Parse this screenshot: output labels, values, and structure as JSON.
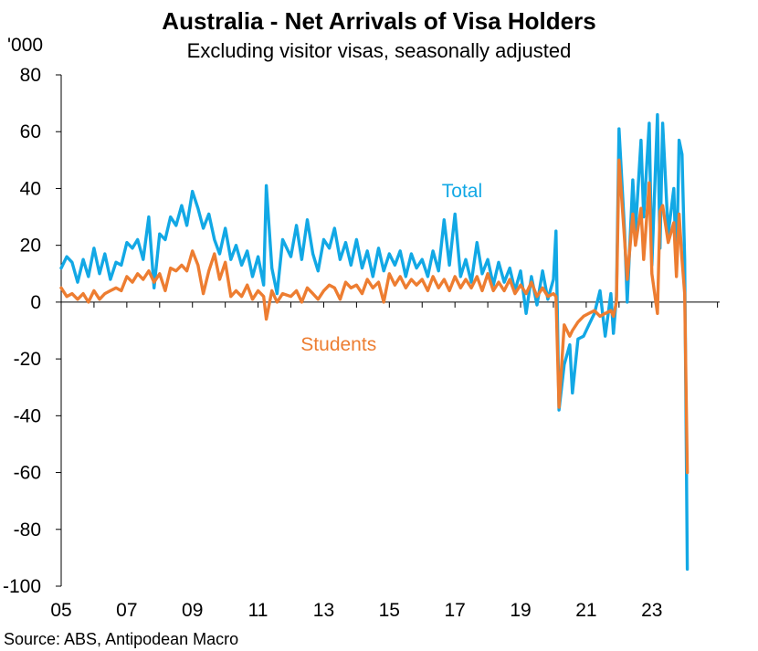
{
  "chart_data": {
    "type": "line",
    "title": "Australia - Net Arrivals of Visa Holders",
    "subtitle": "Excluding visitor visas, seasonally adjusted",
    "y_unit": "'000",
    "source": "Source: ABS, Antipodean Macro",
    "ylim": [
      -100,
      80
    ],
    "yticks": [
      80,
      60,
      40,
      20,
      0,
      -20,
      -40,
      -60,
      -80,
      -100
    ],
    "xlim": [
      2005,
      2025.4
    ],
    "xticks": [
      {
        "x": 2005,
        "label": "05"
      },
      {
        "x": 2007,
        "label": "07"
      },
      {
        "x": 2009,
        "label": "09"
      },
      {
        "x": 2011,
        "label": "11"
      },
      {
        "x": 2013,
        "label": "13"
      },
      {
        "x": 2015,
        "label": "15"
      },
      {
        "x": 2017,
        "label": "17"
      },
      {
        "x": 2019,
        "label": "19"
      },
      {
        "x": 2021,
        "label": "21"
      },
      {
        "x": 2023,
        "label": "23"
      }
    ],
    "grid": false,
    "legend": "inline labels",
    "series": [
      {
        "name": "Total",
        "color": "#12a8e5",
        "label_at": [
          2016.6,
          37
        ],
        "points": [
          [
            2005.0,
            12
          ],
          [
            2005.17,
            16
          ],
          [
            2005.33,
            14
          ],
          [
            2005.5,
            7
          ],
          [
            2005.67,
            15
          ],
          [
            2005.83,
            9
          ],
          [
            2006.0,
            19
          ],
          [
            2006.17,
            10
          ],
          [
            2006.33,
            17
          ],
          [
            2006.5,
            8
          ],
          [
            2006.67,
            14
          ],
          [
            2006.83,
            13
          ],
          [
            2007.0,
            21
          ],
          [
            2007.17,
            19
          ],
          [
            2007.33,
            22
          ],
          [
            2007.5,
            15
          ],
          [
            2007.67,
            30
          ],
          [
            2007.83,
            5
          ],
          [
            2008.0,
            24
          ],
          [
            2008.17,
            22
          ],
          [
            2008.33,
            30
          ],
          [
            2008.5,
            27
          ],
          [
            2008.67,
            34
          ],
          [
            2008.83,
            27
          ],
          [
            2009.0,
            39
          ],
          [
            2009.17,
            33
          ],
          [
            2009.33,
            26
          ],
          [
            2009.5,
            31
          ],
          [
            2009.67,
            22
          ],
          [
            2009.83,
            17
          ],
          [
            2010.0,
            26
          ],
          [
            2010.17,
            15
          ],
          [
            2010.33,
            20
          ],
          [
            2010.5,
            13
          ],
          [
            2010.67,
            18
          ],
          [
            2010.83,
            9
          ],
          [
            2011.0,
            16
          ],
          [
            2011.17,
            6
          ],
          [
            2011.25,
            41
          ],
          [
            2011.42,
            12
          ],
          [
            2011.58,
            3
          ],
          [
            2011.75,
            22
          ],
          [
            2012.0,
            16
          ],
          [
            2012.17,
            27
          ],
          [
            2012.33,
            15
          ],
          [
            2012.5,
            29
          ],
          [
            2012.67,
            17
          ],
          [
            2012.83,
            11
          ],
          [
            2013.0,
            22
          ],
          [
            2013.17,
            19
          ],
          [
            2013.33,
            26
          ],
          [
            2013.5,
            15
          ],
          [
            2013.67,
            21
          ],
          [
            2013.83,
            13
          ],
          [
            2014.0,
            22
          ],
          [
            2014.17,
            12
          ],
          [
            2014.33,
            18
          ],
          [
            2014.5,
            9
          ],
          [
            2014.67,
            19
          ],
          [
            2014.83,
            11
          ],
          [
            2015.0,
            17
          ],
          [
            2015.17,
            13
          ],
          [
            2015.33,
            18
          ],
          [
            2015.5,
            9
          ],
          [
            2015.67,
            17
          ],
          [
            2015.83,
            12
          ],
          [
            2016.0,
            15
          ],
          [
            2016.17,
            9
          ],
          [
            2016.33,
            18
          ],
          [
            2016.5,
            11
          ],
          [
            2016.67,
            29
          ],
          [
            2016.83,
            13
          ],
          [
            2017.0,
            31
          ],
          [
            2017.17,
            9
          ],
          [
            2017.33,
            15
          ],
          [
            2017.5,
            7
          ],
          [
            2017.67,
            21
          ],
          [
            2017.83,
            10
          ],
          [
            2018.0,
            15
          ],
          [
            2018.17,
            6
          ],
          [
            2018.33,
            14
          ],
          [
            2018.5,
            7
          ],
          [
            2018.67,
            12
          ],
          [
            2018.83,
            4
          ],
          [
            2019.0,
            11
          ],
          [
            2019.17,
            -4
          ],
          [
            2019.33,
            9
          ],
          [
            2019.5,
            -1
          ],
          [
            2019.67,
            11
          ],
          [
            2019.83,
            1
          ],
          [
            2020.0,
            8
          ],
          [
            2020.08,
            25
          ],
          [
            2020.17,
            -38
          ],
          [
            2020.33,
            -22
          ],
          [
            2020.5,
            -15
          ],
          [
            2020.58,
            -32
          ],
          [
            2020.75,
            -13
          ],
          [
            2020.92,
            -12
          ],
          [
            2021.08,
            -8
          ],
          [
            2021.25,
            -4
          ],
          [
            2021.42,
            4
          ],
          [
            2021.58,
            -12
          ],
          [
            2021.75,
            3
          ],
          [
            2021.83,
            -11
          ],
          [
            2021.92,
            2
          ],
          [
            2022.0,
            61
          ],
          [
            2022.17,
            25
          ],
          [
            2022.25,
            0
          ],
          [
            2022.42,
            43
          ],
          [
            2022.5,
            25
          ],
          [
            2022.67,
            57
          ],
          [
            2022.75,
            30
          ],
          [
            2022.92,
            63
          ],
          [
            2023.0,
            13
          ],
          [
            2023.17,
            66
          ],
          [
            2023.25,
            19
          ],
          [
            2023.33,
            63
          ],
          [
            2023.5,
            24
          ],
          [
            2023.67,
            40
          ],
          [
            2023.75,
            11
          ],
          [
            2023.83,
            57
          ],
          [
            2023.92,
            52
          ],
          [
            2024.0,
            15
          ],
          [
            2024.08,
            -94
          ]
        ]
      },
      {
        "name": "Students",
        "color": "#ed7d31",
        "label_at": [
          2012.3,
          -17
        ],
        "points": [
          [
            2005.0,
            5
          ],
          [
            2005.17,
            2
          ],
          [
            2005.33,
            3
          ],
          [
            2005.5,
            1
          ],
          [
            2005.67,
            3
          ],
          [
            2005.83,
            0
          ],
          [
            2006.0,
            4
          ],
          [
            2006.17,
            1
          ],
          [
            2006.33,
            3
          ],
          [
            2006.5,
            4
          ],
          [
            2006.67,
            5
          ],
          [
            2006.83,
            4
          ],
          [
            2007.0,
            9
          ],
          [
            2007.17,
            7
          ],
          [
            2007.33,
            10
          ],
          [
            2007.5,
            8
          ],
          [
            2007.67,
            11
          ],
          [
            2007.83,
            7
          ],
          [
            2008.0,
            10
          ],
          [
            2008.17,
            4
          ],
          [
            2008.33,
            12
          ],
          [
            2008.5,
            11
          ],
          [
            2008.67,
            13
          ],
          [
            2008.83,
            11
          ],
          [
            2009.0,
            18
          ],
          [
            2009.17,
            13
          ],
          [
            2009.33,
            3
          ],
          [
            2009.5,
            11
          ],
          [
            2009.67,
            17
          ],
          [
            2009.83,
            8
          ],
          [
            2010.0,
            14
          ],
          [
            2010.17,
            2
          ],
          [
            2010.33,
            4
          ],
          [
            2010.5,
            2
          ],
          [
            2010.67,
            6
          ],
          [
            2010.83,
            1
          ],
          [
            2011.0,
            4
          ],
          [
            2011.17,
            2
          ],
          [
            2011.25,
            -6
          ],
          [
            2011.42,
            4
          ],
          [
            2011.58,
            0
          ],
          [
            2011.75,
            3
          ],
          [
            2012.0,
            2
          ],
          [
            2012.17,
            4
          ],
          [
            2012.33,
            0
          ],
          [
            2012.5,
            5
          ],
          [
            2012.67,
            3
          ],
          [
            2012.83,
            1
          ],
          [
            2013.0,
            4
          ],
          [
            2013.17,
            6
          ],
          [
            2013.33,
            5
          ],
          [
            2013.5,
            1
          ],
          [
            2013.67,
            7
          ],
          [
            2013.83,
            5
          ],
          [
            2014.0,
            6
          ],
          [
            2014.17,
            3
          ],
          [
            2014.33,
            8
          ],
          [
            2014.5,
            5
          ],
          [
            2014.67,
            7
          ],
          [
            2014.83,
            0
          ],
          [
            2015.0,
            10
          ],
          [
            2015.17,
            6
          ],
          [
            2015.33,
            9
          ],
          [
            2015.5,
            5
          ],
          [
            2015.67,
            8
          ],
          [
            2015.83,
            6
          ],
          [
            2016.0,
            8
          ],
          [
            2016.17,
            4
          ],
          [
            2016.33,
            9
          ],
          [
            2016.5,
            5
          ],
          [
            2016.67,
            8
          ],
          [
            2016.83,
            4
          ],
          [
            2017.0,
            9
          ],
          [
            2017.17,
            5
          ],
          [
            2017.33,
            8
          ],
          [
            2017.5,
            5
          ],
          [
            2017.67,
            9
          ],
          [
            2017.83,
            4
          ],
          [
            2018.0,
            10
          ],
          [
            2018.17,
            4
          ],
          [
            2018.33,
            7
          ],
          [
            2018.5,
            4
          ],
          [
            2018.67,
            8
          ],
          [
            2018.83,
            3
          ],
          [
            2019.0,
            6
          ],
          [
            2019.17,
            3
          ],
          [
            2019.33,
            7
          ],
          [
            2019.5,
            2
          ],
          [
            2019.67,
            5
          ],
          [
            2019.83,
            2
          ],
          [
            2020.0,
            3
          ],
          [
            2020.08,
            2
          ],
          [
            2020.17,
            -37
          ],
          [
            2020.33,
            -8
          ],
          [
            2020.5,
            -12
          ],
          [
            2020.58,
            -10
          ],
          [
            2020.75,
            -7
          ],
          [
            2020.92,
            -5
          ],
          [
            2021.08,
            -4
          ],
          [
            2021.25,
            -3
          ],
          [
            2021.42,
            -5
          ],
          [
            2021.58,
            -4
          ],
          [
            2021.75,
            -3
          ],
          [
            2021.83,
            -5
          ],
          [
            2021.92,
            0
          ],
          [
            2022.0,
            50
          ],
          [
            2022.17,
            22
          ],
          [
            2022.25,
            8
          ],
          [
            2022.42,
            31
          ],
          [
            2022.5,
            20
          ],
          [
            2022.67,
            33
          ],
          [
            2022.75,
            15
          ],
          [
            2022.92,
            42
          ],
          [
            2023.0,
            10
          ],
          [
            2023.17,
            -4
          ],
          [
            2023.25,
            32
          ],
          [
            2023.33,
            34
          ],
          [
            2023.5,
            21
          ],
          [
            2023.67,
            28
          ],
          [
            2023.75,
            9
          ],
          [
            2023.83,
            31
          ],
          [
            2023.92,
            15
          ],
          [
            2024.0,
            3
          ],
          [
            2024.08,
            -60
          ]
        ]
      }
    ]
  }
}
